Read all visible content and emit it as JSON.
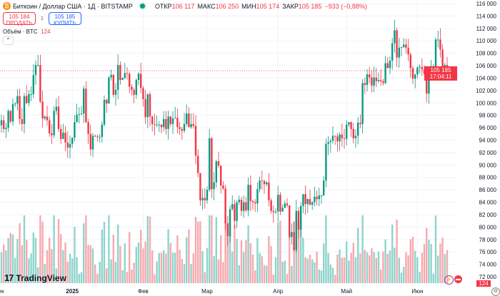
{
  "header": {
    "symbol": "Биткоин / Доллар США · 1Д · BITSTAMP",
    "open_label": "ОТКР",
    "open": "106 117",
    "high_label": "МАКС",
    "high": "106 250",
    "low_label": "МИН",
    "low": "105 174",
    "close_label": "ЗАКР",
    "close": "105 185",
    "change": "−933 (−0,88%)"
  },
  "trade": {
    "sell_price": "105 184",
    "sell_label": "ПРОДАТЬ",
    "spread": "1",
    "buy_price": "105 185",
    "buy_label": "КУПИТЬ"
  },
  "volume_legend": {
    "label": "Объём · BTC",
    "value": "124"
  },
  "collapse_icon": "⌃",
  "logo": {
    "mark": "17",
    "text": "TradingView"
  },
  "price_label": {
    "price": "105 185",
    "countdown": "17:04:11"
  },
  "volume_label": "124",
  "colors": {
    "up": "#089981",
    "down": "#f23645",
    "up_vol": "#8fd4cc",
    "down_vol": "#f7a9ae",
    "grid": "#f0f3fa"
  },
  "chart_data": {
    "type": "candlestick",
    "title": "Биткоин / Доллар США · 1Д · BITSTAMP",
    "start_date": "2024-12-01",
    "units": "thousand USD",
    "closes": [
      97.2,
      95.8,
      96.0,
      98.7,
      97.0,
      99.8,
      99.9,
      101.1,
      97.4,
      96.6,
      101.1,
      100.0,
      101.4,
      101.4,
      104.5,
      106.1,
      106.1,
      100.2,
      97.5,
      97.8,
      97.2,
      95.1,
      94.8,
      98.7,
      99.4,
      95.8,
      94.2,
      95.2,
      93.6,
      92.8,
      93.4,
      94.4,
      96.9,
      98.1,
      98.2,
      98.3,
      102.3,
      96.9,
      95.0,
      92.5,
      94.7,
      94.6,
      94.5,
      94.5,
      96.5,
      100.5,
      99.9,
      104.1,
      104.5,
      101.3,
      102.1,
      106.1,
      103.7,
      104.0,
      104.8,
      104.7,
      102.6,
      102.1,
      101.3,
      103.7,
      104.7,
      102.4,
      100.6,
      97.7,
      101.4,
      97.8,
      96.6,
      96.5,
      96.5,
      96.5,
      96.1,
      97.4,
      95.8,
      97.8,
      96.6,
      97.5,
      97.6,
      96.1,
      95.8,
      95.5,
      96.6,
      98.3,
      96.1,
      96.6,
      96.3,
      91.5,
      88.7,
      84.3,
      84.7,
      84.3,
      86.0,
      94.3,
      86.1,
      87.2,
      90.6,
      89.9,
      86.7,
      86.2,
      80.6,
      78.5,
      82.9,
      83.7,
      81.0,
      84.0,
      84.4,
      82.6,
      84.0,
      82.7,
      86.8,
      84.2,
      84.0,
      83.8,
      86.1,
      87.5,
      87.4,
      86.9,
      87.2,
      84.3,
      82.6,
      82.4,
      82.5,
      85.2,
      82.5,
      83.1,
      83.8,
      83.5,
      78.4,
      79.2,
      76.3,
      82.6,
      79.6,
      83.4,
      85.3,
      83.7,
      84.5,
      83.6,
      84.0,
      84.9,
      84.5,
      85.1,
      85.1,
      87.5,
      93.4,
      93.7,
      93.9,
      94.7,
      94.6,
      93.8,
      94.9,
      94.3,
      94.2,
      96.5,
      96.9,
      95.8,
      94.3,
      94.7,
      96.8,
      96.6,
      103.2,
      102.9,
      104.6,
      104.1,
      102.8,
      104.1,
      103.5,
      103.7,
      103.5,
      103.2,
      106.4,
      105.6,
      106.8,
      109.6,
      111.7,
      107.3,
      108.9,
      109.0,
      109.4,
      108.9,
      107.8,
      105.6,
      103.9,
      104.6,
      105.7,
      105.8,
      105.4,
      104.7,
      101.5,
      104.3,
      105.6,
      105.7,
      110.2,
      110.2,
      108.6,
      105.6,
      106.117,
      105.185
    ],
    "first_open": 96.4,
    "y_axis": {
      "min": 72000,
      "max": 116000,
      "step": 2000,
      "ticks": [
        "116 000",
        "114 000",
        "112 000",
        "110 000",
        "108 000",
        "106 000",
        "104 000",
        "102 000",
        "100 000",
        "98 000",
        "96 000",
        "94 000",
        "92 000",
        "90 000",
        "88 000",
        "86 000",
        "84 000",
        "82 000",
        "80 000",
        "78 000",
        "76 000",
        "74 000",
        "72 000"
      ]
    },
    "x_axis": {
      "ticks": [
        {
          "label": "Дек",
          "day": -1
        },
        {
          "label": "2025",
          "day": 31
        },
        {
          "label": "Фев",
          "day": 62
        },
        {
          "label": "Мар",
          "day": 90
        },
        {
          "label": "Апр",
          "day": 121
        },
        {
          "label": "Май",
          "day": 151
        },
        {
          "label": "Июн",
          "day": 182
        }
      ]
    }
  }
}
